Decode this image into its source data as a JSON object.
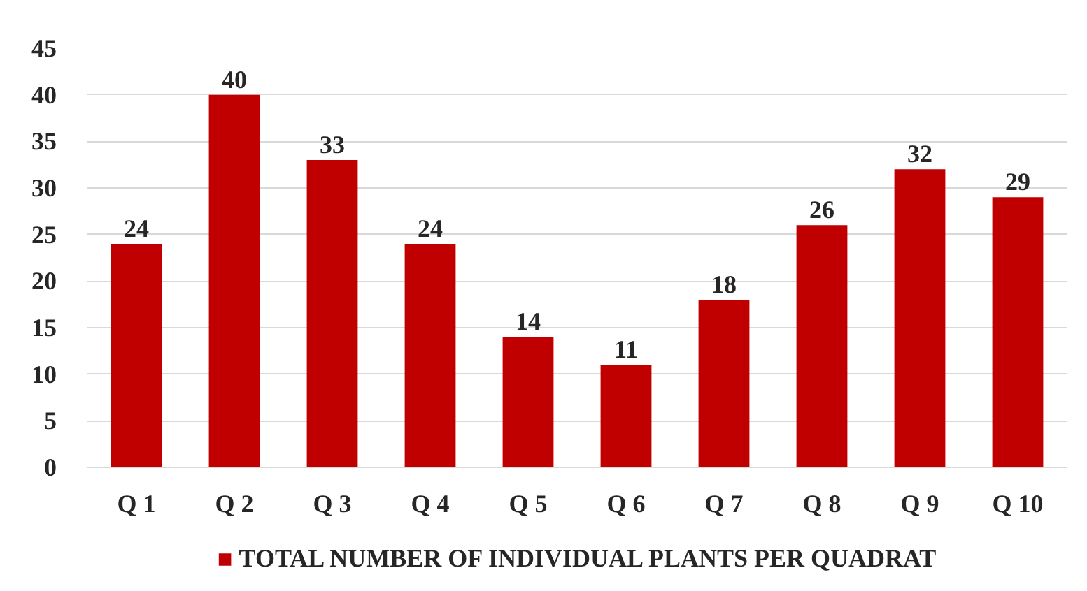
{
  "chart_data": {
    "type": "bar",
    "categories": [
      "Q 1",
      "Q 2",
      "Q 3",
      "Q 4",
      "Q 5",
      "Q 6",
      "Q 7",
      "Q 8",
      "Q 9",
      "Q 10"
    ],
    "series": [
      {
        "name": "TOTAL NUMBER OF INDIVIDUAL PLANTS PER QUADRAT",
        "color": "#c00000",
        "values": [
          24,
          40,
          33,
          24,
          14,
          11,
          18,
          26,
          32,
          29
        ]
      }
    ],
    "ylim": [
      0,
      45
    ],
    "yticks": [
      0,
      5,
      10,
      15,
      20,
      25,
      30,
      35,
      40,
      45
    ],
    "grid": "y",
    "legend": "bottom",
    "data_labels": true
  }
}
